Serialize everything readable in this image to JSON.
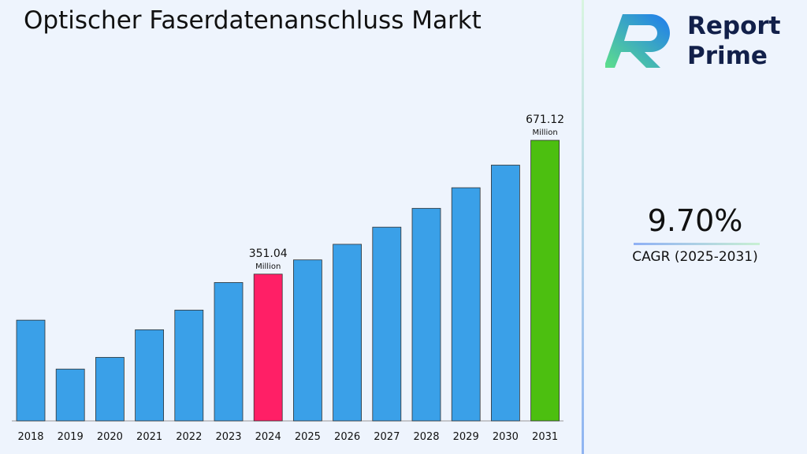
{
  "title": "Optischer Faserdatenanschluss Markt",
  "logo": {
    "line1": "Report",
    "line2": "Prime"
  },
  "cagr": {
    "value": "9.70%",
    "label": "CAGR (2025-2031)"
  },
  "colors": {
    "default": "#3aa0e8",
    "highlight_2024": "#ff1f66",
    "highlight_2031": "#4cbf10"
  },
  "chart_data": {
    "type": "bar",
    "title": "Optischer Faserdatenanschluss Markt",
    "categories": [
      "2018",
      "2019",
      "2020",
      "2021",
      "2022",
      "2023",
      "2024",
      "2025",
      "2026",
      "2027",
      "2028",
      "2029",
      "2030",
      "2031"
    ],
    "values": [
      241,
      124,
      152,
      218,
      265,
      331,
      351.04,
      385.1,
      422.4,
      463.4,
      508.4,
      557.7,
      611.8,
      671.12
    ],
    "data_labels": [
      {
        "category": "2024",
        "value": "351.04",
        "unit": "Million"
      },
      {
        "category": "2031",
        "value": "671.12",
        "unit": "Million"
      }
    ],
    "ylim": [
      0,
      700
    ],
    "grid": false,
    "xlabel": "",
    "ylabel": ""
  }
}
